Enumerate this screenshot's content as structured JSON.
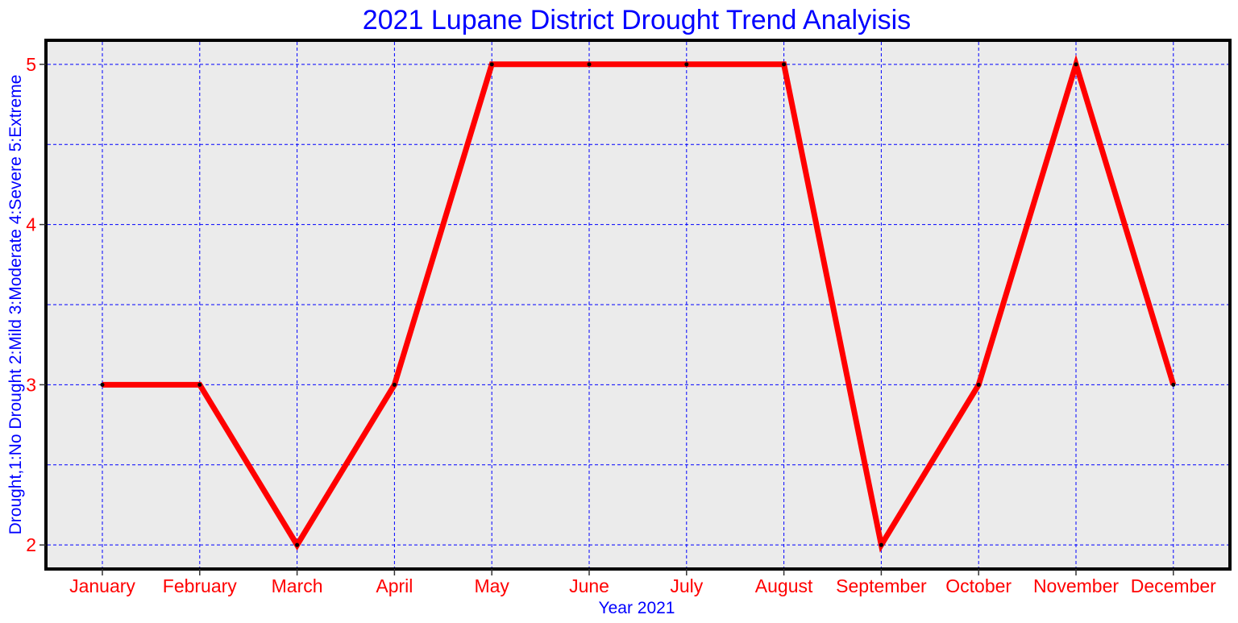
{
  "chart_data": {
    "type": "line",
    "title": "2021 Lupane District Drought Trend Analyisis",
    "xlabel": "Year 2021",
    "ylabel": "Drought,1:No Drought 2:Mild 3:Moderate 4:Severe 5:Extreme",
    "categories": [
      "January",
      "February",
      "March",
      "April",
      "May",
      "June",
      "July",
      "August",
      "September",
      "October",
      "November",
      "December"
    ],
    "series": [
      {
        "values": [
          3,
          3,
          2,
          3,
          5,
          5,
          5,
          5,
          2,
          3,
          5,
          3
        ]
      }
    ],
    "ylim": [
      1.85,
      5.15
    ],
    "yticks": [
      "2",
      "3",
      "4",
      "5"
    ],
    "grid": true,
    "colors": {
      "line": "#ff0000",
      "grid": "#0000ff",
      "panel": "#ebebeb",
      "frame": "#000000",
      "title": "#0000ff",
      "tick_labels": "#ff0000",
      "axis_labels": "#0000ff"
    }
  }
}
